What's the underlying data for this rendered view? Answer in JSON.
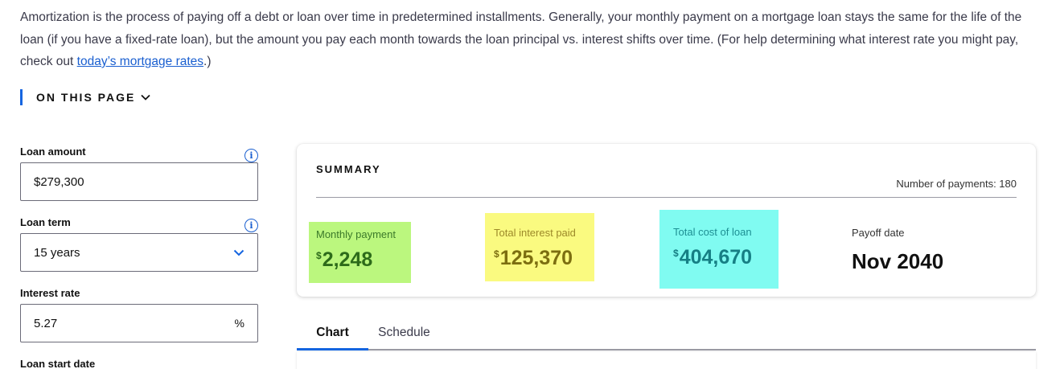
{
  "intro": {
    "text_before_link": "Amortization is the process of paying off a debt or loan over time in predetermined installments. Generally, your monthly payment on a mortgage loan stays the same for the life of the loan (if you have a fixed-rate loan), but the amount you pay each month towards the loan principal vs. interest shifts over time. (For help determining what interest rate you might pay, check out ",
    "link_text": "today’s mortgage rates",
    "text_after_link": ".)"
  },
  "toc": {
    "label": "ON THIS PAGE",
    "icon": "chevron-down-icon"
  },
  "form": {
    "loan_amount": {
      "label": "Loan amount",
      "value": "$279,300",
      "info_icon": "i"
    },
    "loan_term": {
      "label": "Loan term",
      "value": "15 years",
      "info_icon": "i"
    },
    "interest_rate": {
      "label": "Interest rate",
      "value": "5.27",
      "suffix": "%"
    },
    "start_date": {
      "label": "Loan start date"
    }
  },
  "summary": {
    "title": "SUMMARY",
    "num_payments": "Number of payments: 180",
    "monthly": {
      "label": "Monthly payment",
      "currency": "$",
      "value": "2,248",
      "highlight": "#bbf77e"
    },
    "interest": {
      "label": "Total interest paid",
      "currency": "$",
      "value": "125,370",
      "highlight": "#fafa80"
    },
    "total": {
      "label": "Total cost of loan",
      "currency": "$",
      "value": "404,670",
      "highlight": "#80fbf1"
    },
    "payoff": {
      "label": "Payoff date",
      "value": "Nov 2040"
    }
  },
  "tabs": [
    {
      "label": "Chart",
      "active": true
    },
    {
      "label": "Schedule",
      "active": false
    }
  ],
  "colors": {
    "accent": "#1565e0",
    "link": "#1a5fd0"
  }
}
